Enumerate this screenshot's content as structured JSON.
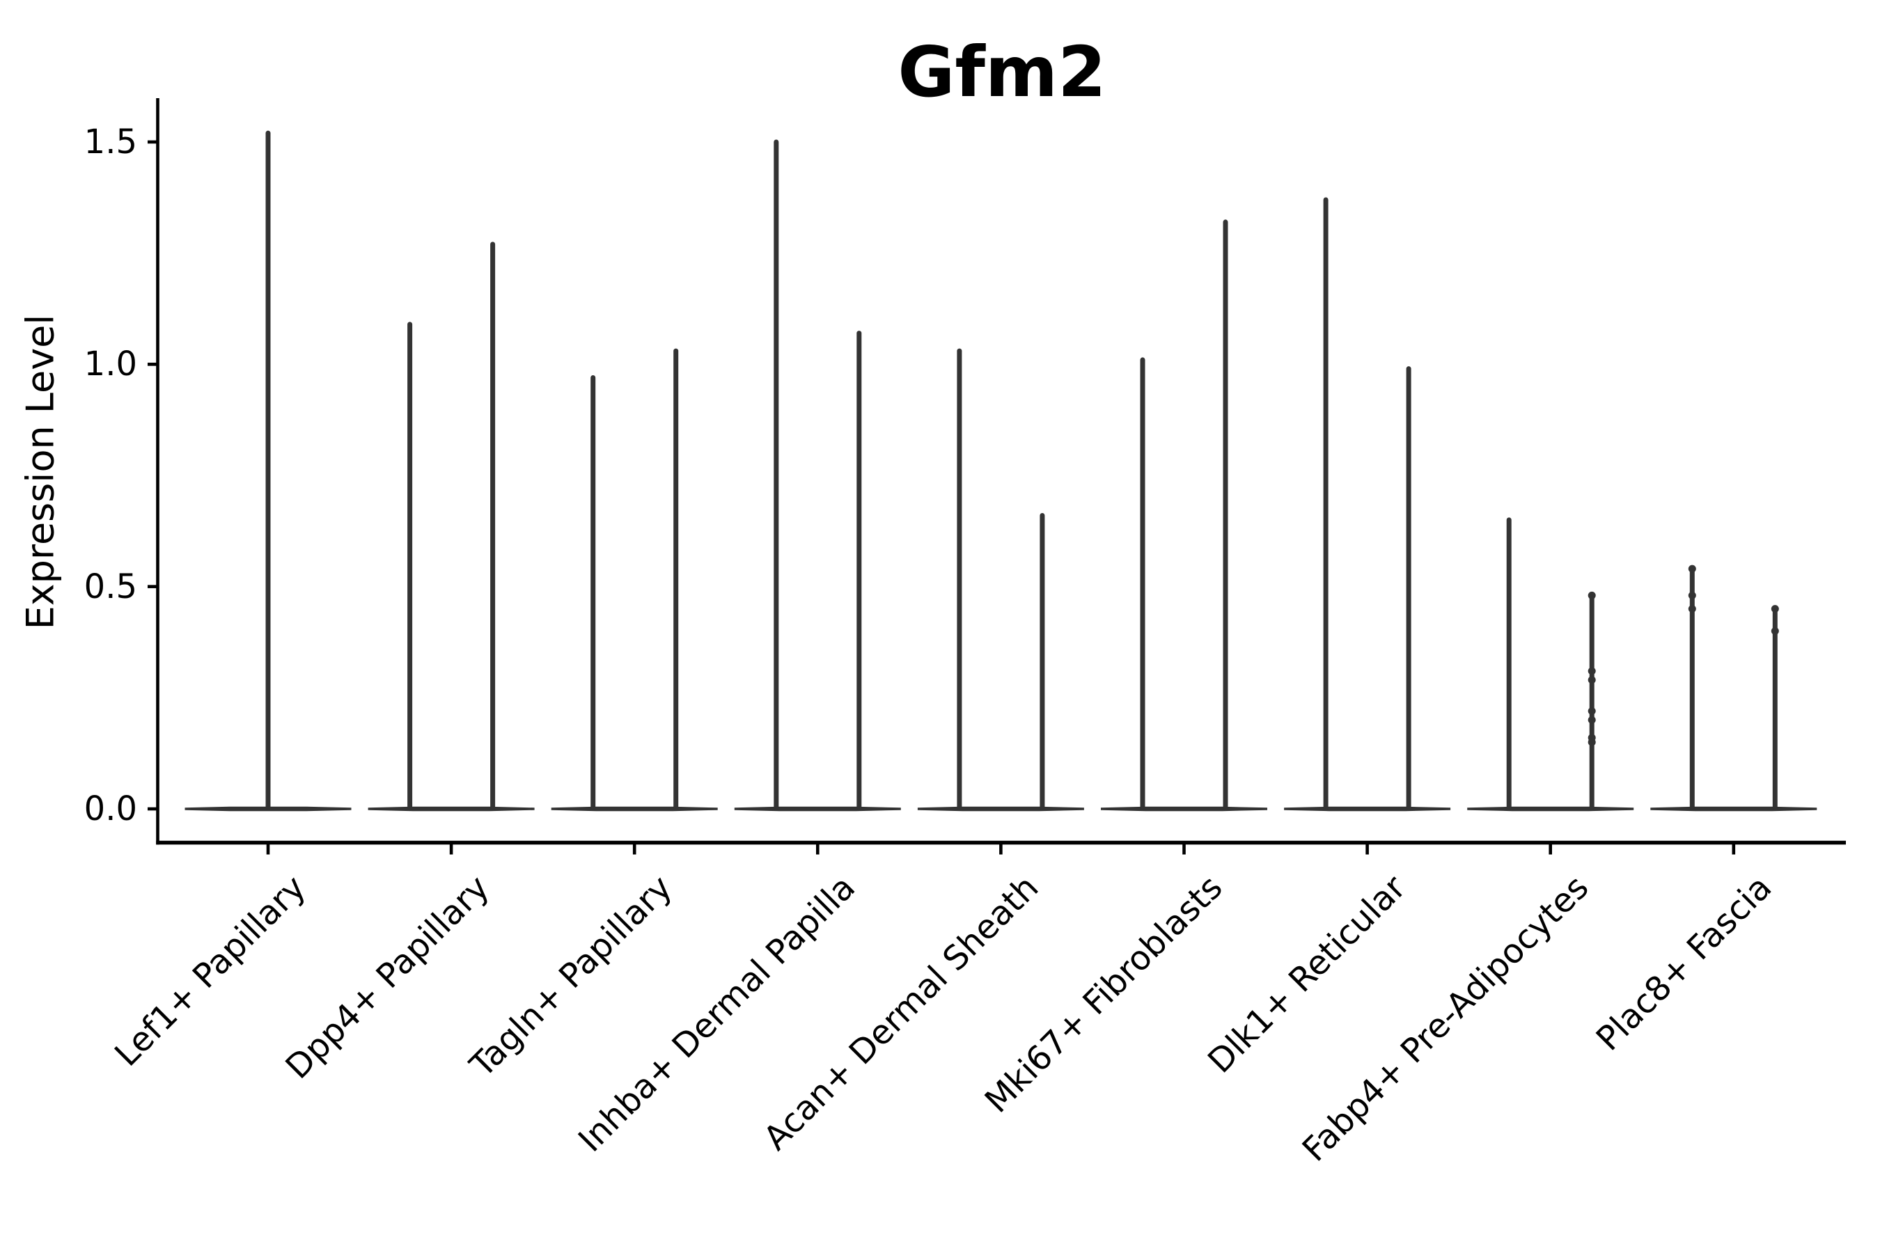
{
  "chart_data": {
    "type": "violin",
    "title": "Gfm2",
    "ylabel": "Expression Level",
    "xlabel": "",
    "categories": [
      "Lef1+ Papillary",
      "Dpp4+ Papillary",
      "Tagln+ Papillary",
      "Inhba+ Dermal Papilla",
      "Acan+ Dermal Sheath",
      "Mki67+ Fibroblasts",
      "Dlk1+ Reticular",
      "Fabp4+ Pre-Adipocytes",
      "Plac8+ Fascia"
    ],
    "y_tick_labels": [
      "0.0",
      "0.5",
      "1.0",
      "1.5"
    ],
    "ylim": [
      -0.08,
      1.6
    ],
    "grid": false,
    "legend": null,
    "violins_per_category": 2,
    "series": [
      {
        "name": "violin-left",
        "max_values": [
          1.52,
          1.09,
          0.97,
          1.5,
          1.03,
          1.01,
          1.37,
          0.65,
          0.54
        ]
      },
      {
        "name": "violin-right",
        "max_values": [
          null,
          1.27,
          1.03,
          1.07,
          0.66,
          1.32,
          0.99,
          0.48,
          0.45
        ]
      }
    ],
    "jitter_points": [
      {
        "category": "Fabp4+ Pre-Adipocytes",
        "violin": "right",
        "values": [
          0.48,
          0.31,
          0.29,
          0.22,
          0.2,
          0.16,
          0.15
        ]
      },
      {
        "category": "Plac8+ Fascia",
        "violin": "left",
        "values": [
          0.54,
          0.48,
          0.45
        ]
      },
      {
        "category": "Plac8+ Fascia",
        "violin": "right",
        "values": [
          0.45,
          0.4
        ]
      }
    ],
    "colors": {
      "violin": "#333333",
      "axis": "#000000",
      "text": "#000000",
      "background": "#ffffff"
    }
  }
}
